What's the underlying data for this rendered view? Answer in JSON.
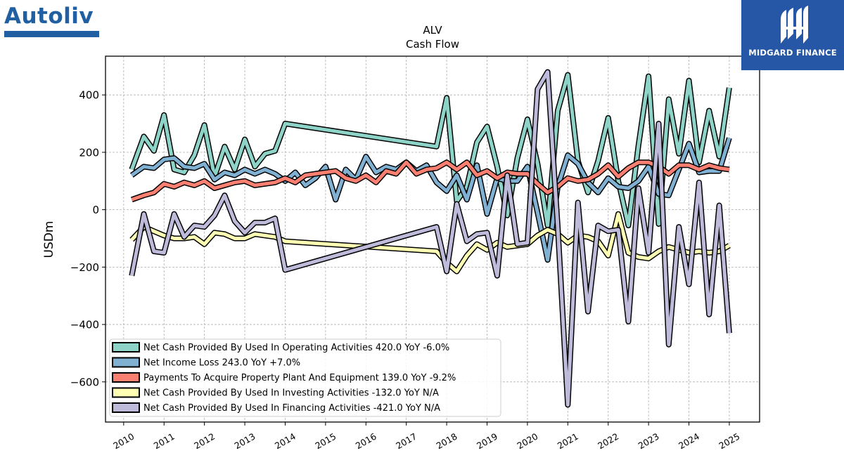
{
  "brand": {
    "company_logo_text": "Autoliv",
    "corner_logo_text": "MIDGARD FINANCE"
  },
  "chart_data": {
    "type": "line",
    "title": "ALV",
    "subtitle": "Cash Flow",
    "xlabel": "",
    "ylabel": "USDm",
    "xlim": [
      2009.55,
      2025.75
    ],
    "ylim": [
      -740,
      535
    ],
    "x_ticks": [
      "2010",
      "2011",
      "2012",
      "2013",
      "2014",
      "2015",
      "2016",
      "2017",
      "2018",
      "2019",
      "2020",
      "2021",
      "2022",
      "2023",
      "2024",
      "2025"
    ],
    "y_ticks": [
      {
        "value": 400,
        "label": "400"
      },
      {
        "value": 200,
        "label": "200"
      },
      {
        "value": 0,
        "label": "0"
      },
      {
        "value": -200,
        "label": "−200"
      },
      {
        "value": -400,
        "label": "−400"
      },
      {
        "value": -600,
        "label": "−600"
      }
    ],
    "grid": true,
    "legend_position": "bottom-left",
    "series": [
      {
        "name": "Net Cash Provided By Used In Operating Activities",
        "legend_label": "Net Cash Provided By Used In Operating Activities  420.0 YoY -6.0%",
        "color": "#8dd3c7",
        "points": [
          [
            2010.2,
            140
          ],
          [
            2010.5,
            255
          ],
          [
            2010.75,
            205
          ],
          [
            2011.0,
            330
          ],
          [
            2011.25,
            140
          ],
          [
            2011.5,
            130
          ],
          [
            2011.75,
            190
          ],
          [
            2012.0,
            295
          ],
          [
            2012.25,
            115
          ],
          [
            2012.5,
            220
          ],
          [
            2012.75,
            140
          ],
          [
            2013.0,
            245
          ],
          [
            2013.25,
            150
          ],
          [
            2013.5,
            195
          ],
          [
            2013.75,
            205
          ],
          [
            2014.0,
            300
          ],
          [
            2017.75,
            220
          ],
          [
            2018.0,
            390
          ],
          [
            2018.25,
            30
          ],
          [
            2018.5,
            80
          ],
          [
            2018.75,
            235
          ],
          [
            2019.0,
            290
          ],
          [
            2019.25,
            150
          ],
          [
            2019.5,
            -20
          ],
          [
            2019.75,
            180
          ],
          [
            2020.0,
            315
          ],
          [
            2020.25,
            160
          ],
          [
            2020.5,
            -55
          ],
          [
            2020.75,
            345
          ],
          [
            2021.0,
            470
          ],
          [
            2021.25,
            170
          ],
          [
            2021.5,
            60
          ],
          [
            2021.75,
            170
          ],
          [
            2022.0,
            320
          ],
          [
            2022.25,
            100
          ],
          [
            2022.5,
            -55
          ],
          [
            2022.75,
            225
          ],
          [
            2023.0,
            465
          ],
          [
            2023.25,
            -50
          ],
          [
            2023.5,
            385
          ],
          [
            2023.75,
            195
          ],
          [
            2024.0,
            450
          ],
          [
            2024.25,
            165
          ],
          [
            2024.5,
            345
          ],
          [
            2024.75,
            185
          ],
          [
            2025.0,
            425
          ]
        ]
      },
      {
        "name": "Net Income Loss",
        "legend_label": "Net Income Loss  243.0 YoY +7.0%",
        "color": "#80b1d3",
        "points": [
          [
            2010.2,
            120
          ],
          [
            2010.5,
            150
          ],
          [
            2010.75,
            145
          ],
          [
            2011.0,
            175
          ],
          [
            2011.25,
            180
          ],
          [
            2011.5,
            150
          ],
          [
            2011.75,
            145
          ],
          [
            2012.0,
            160
          ],
          [
            2012.25,
            105
          ],
          [
            2012.5,
            130
          ],
          [
            2012.75,
            120
          ],
          [
            2013.0,
            140
          ],
          [
            2013.25,
            125
          ],
          [
            2013.5,
            140
          ],
          [
            2013.75,
            125
          ],
          [
            2014.0,
            100
          ],
          [
            2014.25,
            130
          ],
          [
            2014.5,
            85
          ],
          [
            2014.75,
            110
          ],
          [
            2015.0,
            150
          ],
          [
            2015.25,
            35
          ],
          [
            2015.5,
            140
          ],
          [
            2015.75,
            105
          ],
          [
            2016.0,
            185
          ],
          [
            2016.25,
            130
          ],
          [
            2016.5,
            150
          ],
          [
            2016.75,
            140
          ],
          [
            2017.0,
            165
          ],
          [
            2017.25,
            135
          ],
          [
            2017.5,
            155
          ],
          [
            2017.75,
            95
          ],
          [
            2018.0,
            65
          ],
          [
            2018.25,
            120
          ],
          [
            2018.5,
            35
          ],
          [
            2018.75,
            155
          ],
          [
            2019.0,
            -15
          ],
          [
            2019.25,
            110
          ],
          [
            2019.5,
            100
          ],
          [
            2019.75,
            100
          ],
          [
            2020.0,
            150
          ],
          [
            2020.25,
            -10
          ],
          [
            2020.5,
            -175
          ],
          [
            2020.75,
            80
          ],
          [
            2021.0,
            190
          ],
          [
            2021.25,
            160
          ],
          [
            2021.5,
            95
          ],
          [
            2021.75,
            60
          ],
          [
            2022.0,
            110
          ],
          [
            2022.25,
            80
          ],
          [
            2022.5,
            75
          ],
          [
            2022.75,
            100
          ],
          [
            2023.0,
            150
          ],
          [
            2023.25,
            55
          ],
          [
            2023.5,
            50
          ],
          [
            2023.75,
            140
          ],
          [
            2024.0,
            230
          ],
          [
            2024.25,
            130
          ],
          [
            2024.5,
            135
          ],
          [
            2024.75,
            135
          ],
          [
            2025.0,
            250
          ]
        ]
      },
      {
        "name": "Payments To Acquire Property Plant And Equipment",
        "legend_label": "Payments To Acquire Property Plant And Equipment  139.0 YoY -9.2%",
        "color": "#fb8072",
        "points": [
          [
            2010.2,
            35
          ],
          [
            2010.5,
            50
          ],
          [
            2010.75,
            60
          ],
          [
            2011.0,
            90
          ],
          [
            2011.25,
            80
          ],
          [
            2011.5,
            95
          ],
          [
            2011.75,
            85
          ],
          [
            2012.0,
            100
          ],
          [
            2012.25,
            75
          ],
          [
            2012.5,
            85
          ],
          [
            2012.75,
            95
          ],
          [
            2013.0,
            100
          ],
          [
            2013.25,
            85
          ],
          [
            2013.5,
            90
          ],
          [
            2013.75,
            95
          ],
          [
            2014.0,
            110
          ],
          [
            2014.25,
            95
          ],
          [
            2014.5,
            120
          ],
          [
            2014.75,
            125
          ],
          [
            2015.0,
            130
          ],
          [
            2015.25,
            135
          ],
          [
            2015.5,
            110
          ],
          [
            2015.75,
            100
          ],
          [
            2016.0,
            120
          ],
          [
            2016.25,
            95
          ],
          [
            2016.5,
            135
          ],
          [
            2016.75,
            125
          ],
          [
            2017.0,
            165
          ],
          [
            2017.25,
            125
          ],
          [
            2017.5,
            140
          ],
          [
            2017.75,
            145
          ],
          [
            2018.0,
            165
          ],
          [
            2018.25,
            140
          ],
          [
            2018.5,
            165
          ],
          [
            2018.75,
            120
          ],
          [
            2019.0,
            135
          ],
          [
            2019.25,
            110
          ],
          [
            2019.5,
            130
          ],
          [
            2019.75,
            125
          ],
          [
            2020.0,
            125
          ],
          [
            2020.25,
            90
          ],
          [
            2020.5,
            60
          ],
          [
            2020.75,
            80
          ],
          [
            2021.0,
            110
          ],
          [
            2021.25,
            100
          ],
          [
            2021.5,
            105
          ],
          [
            2021.75,
            125
          ],
          [
            2022.0,
            155
          ],
          [
            2022.25,
            115
          ],
          [
            2022.5,
            145
          ],
          [
            2022.75,
            165
          ],
          [
            2023.0,
            165
          ],
          [
            2023.25,
            150
          ],
          [
            2023.5,
            125
          ],
          [
            2023.75,
            155
          ],
          [
            2024.0,
            155
          ],
          [
            2024.25,
            140
          ],
          [
            2024.5,
            155
          ],
          [
            2024.75,
            145
          ],
          [
            2025.0,
            140
          ]
        ]
      },
      {
        "name": "Net Cash Provided By Used In Investing Activities",
        "legend_label": "Net Cash Provided By Used In Investing Activities  -132.0 YoY N/A",
        "color": "#ffffb3",
        "points": [
          [
            2010.2,
            -105
          ],
          [
            2010.5,
            -60
          ],
          [
            2010.75,
            -75
          ],
          [
            2011.0,
            -90
          ],
          [
            2011.25,
            -100
          ],
          [
            2011.5,
            -100
          ],
          [
            2011.75,
            -95
          ],
          [
            2012.0,
            -120
          ],
          [
            2012.25,
            -80
          ],
          [
            2012.5,
            -85
          ],
          [
            2012.75,
            -100
          ],
          [
            2013.0,
            -100
          ],
          [
            2013.25,
            -85
          ],
          [
            2013.5,
            -90
          ],
          [
            2013.75,
            -95
          ],
          [
            2014.0,
            -110
          ],
          [
            2017.75,
            -145
          ],
          [
            2018.0,
            -185
          ],
          [
            2018.25,
            -215
          ],
          [
            2018.5,
            -160
          ],
          [
            2018.75,
            -120
          ],
          [
            2019.0,
            -140
          ],
          [
            2019.25,
            -115
          ],
          [
            2019.5,
            -130
          ],
          [
            2019.75,
            -125
          ],
          [
            2020.0,
            -120
          ],
          [
            2020.25,
            -90
          ],
          [
            2020.5,
            -70
          ],
          [
            2020.75,
            -85
          ],
          [
            2021.0,
            -115
          ],
          [
            2021.25,
            -90
          ],
          [
            2021.5,
            -95
          ],
          [
            2021.75,
            -110
          ],
          [
            2022.0,
            -160
          ],
          [
            2022.25,
            -15
          ],
          [
            2022.5,
            -150
          ],
          [
            2022.75,
            -165
          ],
          [
            2023.0,
            -170
          ],
          [
            2023.25,
            -145
          ],
          [
            2023.5,
            -130
          ],
          [
            2023.75,
            -140
          ],
          [
            2024.0,
            -150
          ],
          [
            2024.25,
            -145
          ],
          [
            2024.5,
            -150
          ],
          [
            2024.75,
            -145
          ],
          [
            2025.0,
            -125
          ]
        ]
      },
      {
        "name": "Net Cash Provided By Used In Financing Activities",
        "legend_label": "Net Cash Provided By Used In Financing Activities  -421.0 YoY N/A",
        "color": "#bebada",
        "points": [
          [
            2010.2,
            -230
          ],
          [
            2010.5,
            -15
          ],
          [
            2010.75,
            -145
          ],
          [
            2011.0,
            -150
          ],
          [
            2011.25,
            -15
          ],
          [
            2011.5,
            -95
          ],
          [
            2011.75,
            -55
          ],
          [
            2012.0,
            -60
          ],
          [
            2012.25,
            -20
          ],
          [
            2012.5,
            50
          ],
          [
            2012.75,
            -40
          ],
          [
            2013.0,
            -80
          ],
          [
            2013.25,
            -45
          ],
          [
            2013.5,
            -45
          ],
          [
            2013.75,
            -30
          ],
          [
            2014.0,
            -210
          ],
          [
            2017.75,
            -60
          ],
          [
            2018.0,
            -215
          ],
          [
            2018.25,
            20
          ],
          [
            2018.5,
            -110
          ],
          [
            2018.75,
            -85
          ],
          [
            2019.0,
            -80
          ],
          [
            2019.25,
            -230
          ],
          [
            2019.5,
            120
          ],
          [
            2019.75,
            -120
          ],
          [
            2020.0,
            -115
          ],
          [
            2020.25,
            420
          ],
          [
            2020.5,
            480
          ],
          [
            2020.75,
            -60
          ],
          [
            2021.0,
            -680
          ],
          [
            2021.25,
            25
          ],
          [
            2021.5,
            -355
          ],
          [
            2021.75,
            -55
          ],
          [
            2022.0,
            -75
          ],
          [
            2022.25,
            -70
          ],
          [
            2022.5,
            -390
          ],
          [
            2022.75,
            75
          ],
          [
            2023.0,
            -150
          ],
          [
            2023.25,
            300
          ],
          [
            2023.5,
            -470
          ],
          [
            2023.75,
            -60
          ],
          [
            2024.0,
            -260
          ],
          [
            2024.25,
            95
          ],
          [
            2024.5,
            -365
          ],
          [
            2024.75,
            15
          ],
          [
            2025.0,
            -430
          ]
        ]
      }
    ]
  }
}
